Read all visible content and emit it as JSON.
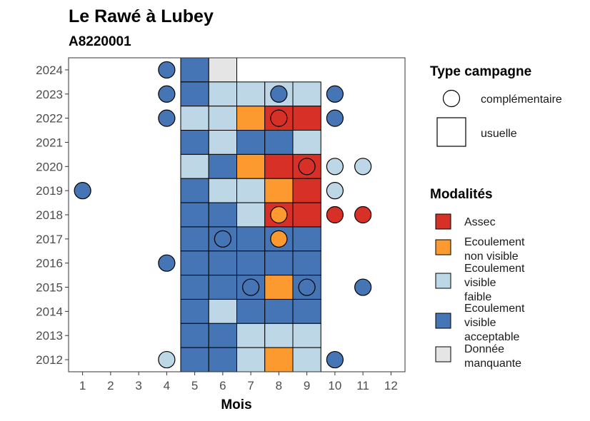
{
  "chart_data": {
    "type": "heatmap",
    "title": "Le Rawé à Lubey",
    "subtitle": "A8220001",
    "xlabel": "Mois",
    "ylabel": "",
    "x_ticks": [
      "1",
      "2",
      "3",
      "4",
      "5",
      "6",
      "7",
      "8",
      "9",
      "10",
      "11",
      "12"
    ],
    "y_ticks": [
      "2012",
      "2013",
      "2014",
      "2015",
      "2016",
      "2017",
      "2018",
      "2019",
      "2020",
      "2021",
      "2022",
      "2023",
      "2024"
    ],
    "xlim": [
      0.5,
      12.5
    ],
    "ylim": [
      2011.5,
      2024.5
    ],
    "grid": false,
    "legend_position": "right",
    "legend_type": {
      "title": "Type campagne",
      "items": [
        {
          "key": "complementaire",
          "label": "complémentaire",
          "shape": "circle"
        },
        {
          "key": "usuelle",
          "label": "usuelle",
          "shape": "square"
        }
      ]
    },
    "legend_modalites": {
      "title": "Modalités",
      "items": [
        {
          "key": "assec",
          "lines": [
            "Assec"
          ],
          "color": "#d73027"
        },
        {
          "key": "enb",
          "lines": [
            "Ecoulement",
            "non visible"
          ],
          "color": "#fd9a2f"
        },
        {
          "key": "evf",
          "lines": [
            "Ecoulement",
            "visible",
            "faible"
          ],
          "color": "#bdd7e7"
        },
        {
          "key": "eva",
          "lines": [
            "Ecoulement",
            "visible",
            "acceptable"
          ],
          "color": "#4575b4"
        },
        {
          "key": "nd",
          "lines": [
            "Donnée",
            "manquante"
          ],
          "color": "#e5e5e5"
        }
      ]
    },
    "tiles": [
      {
        "year": 2024,
        "month": 5,
        "m": "eva"
      },
      {
        "year": 2024,
        "month": 6,
        "m": "nd"
      },
      {
        "year": 2023,
        "month": 5,
        "m": "eva"
      },
      {
        "year": 2023,
        "month": 6,
        "m": "evf"
      },
      {
        "year": 2023,
        "month": 7,
        "m": "evf"
      },
      {
        "year": 2023,
        "month": 8,
        "m": "evf"
      },
      {
        "year": 2023,
        "month": 9,
        "m": "evf"
      },
      {
        "year": 2022,
        "month": 5,
        "m": "evf"
      },
      {
        "year": 2022,
        "month": 6,
        "m": "evf"
      },
      {
        "year": 2022,
        "month": 7,
        "m": "enb"
      },
      {
        "year": 2022,
        "month": 8,
        "m": "assec"
      },
      {
        "year": 2022,
        "month": 9,
        "m": "assec"
      },
      {
        "year": 2021,
        "month": 5,
        "m": "eva"
      },
      {
        "year": 2021,
        "month": 6,
        "m": "evf"
      },
      {
        "year": 2021,
        "month": 7,
        "m": "eva"
      },
      {
        "year": 2021,
        "month": 8,
        "m": "eva"
      },
      {
        "year": 2021,
        "month": 9,
        "m": "evf"
      },
      {
        "year": 2020,
        "month": 5,
        "m": "evf"
      },
      {
        "year": 2020,
        "month": 6,
        "m": "eva"
      },
      {
        "year": 2020,
        "month": 7,
        "m": "enb"
      },
      {
        "year": 2020,
        "month": 8,
        "m": "assec"
      },
      {
        "year": 2020,
        "month": 9,
        "m": "assec"
      },
      {
        "year": 2019,
        "month": 5,
        "m": "eva"
      },
      {
        "year": 2019,
        "month": 6,
        "m": "evf"
      },
      {
        "year": 2019,
        "month": 7,
        "m": "evf"
      },
      {
        "year": 2019,
        "month": 8,
        "m": "enb"
      },
      {
        "year": 2019,
        "month": 9,
        "m": "assec"
      },
      {
        "year": 2018,
        "month": 5,
        "m": "eva"
      },
      {
        "year": 2018,
        "month": 6,
        "m": "eva"
      },
      {
        "year": 2018,
        "month": 7,
        "m": "evf"
      },
      {
        "year": 2018,
        "month": 8,
        "m": "assec"
      },
      {
        "year": 2018,
        "month": 9,
        "m": "assec"
      },
      {
        "year": 2017,
        "month": 5,
        "m": "eva"
      },
      {
        "year": 2017,
        "month": 6,
        "m": "eva"
      },
      {
        "year": 2017,
        "month": 7,
        "m": "eva"
      },
      {
        "year": 2017,
        "month": 8,
        "m": "eva"
      },
      {
        "year": 2017,
        "month": 9,
        "m": "eva"
      },
      {
        "year": 2016,
        "month": 5,
        "m": "eva"
      },
      {
        "year": 2016,
        "month": 6,
        "m": "eva"
      },
      {
        "year": 2016,
        "month": 7,
        "m": "eva"
      },
      {
        "year": 2016,
        "month": 8,
        "m": "eva"
      },
      {
        "year": 2016,
        "month": 9,
        "m": "eva"
      },
      {
        "year": 2015,
        "month": 5,
        "m": "eva"
      },
      {
        "year": 2015,
        "month": 6,
        "m": "eva"
      },
      {
        "year": 2015,
        "month": 7,
        "m": "eva"
      },
      {
        "year": 2015,
        "month": 8,
        "m": "enb"
      },
      {
        "year": 2015,
        "month": 9,
        "m": "eva"
      },
      {
        "year": 2014,
        "month": 5,
        "m": "eva"
      },
      {
        "year": 2014,
        "month": 6,
        "m": "evf"
      },
      {
        "year": 2014,
        "month": 7,
        "m": "eva"
      },
      {
        "year": 2014,
        "month": 8,
        "m": "eva"
      },
      {
        "year": 2014,
        "month": 9,
        "m": "eva"
      },
      {
        "year": 2013,
        "month": 5,
        "m": "eva"
      },
      {
        "year": 2013,
        "month": 6,
        "m": "eva"
      },
      {
        "year": 2013,
        "month": 7,
        "m": "evf"
      },
      {
        "year": 2013,
        "month": 8,
        "m": "evf"
      },
      {
        "year": 2013,
        "month": 9,
        "m": "evf"
      },
      {
        "year": 2012,
        "month": 5,
        "m": "eva"
      },
      {
        "year": 2012,
        "month": 6,
        "m": "eva"
      },
      {
        "year": 2012,
        "month": 7,
        "m": "evf"
      },
      {
        "year": 2012,
        "month": 8,
        "m": "enb"
      },
      {
        "year": 2012,
        "month": 9,
        "m": "evf"
      }
    ],
    "points": [
      {
        "year": 2024,
        "month": 4,
        "m": "eva"
      },
      {
        "year": 2023,
        "month": 4,
        "m": "eva"
      },
      {
        "year": 2023,
        "month": 8,
        "m": "eva"
      },
      {
        "year": 2023,
        "month": 10,
        "m": "eva"
      },
      {
        "year": 2022,
        "month": 4,
        "m": "eva"
      },
      {
        "year": 2022,
        "month": 8,
        "m": "assec"
      },
      {
        "year": 2022,
        "month": 10,
        "m": "eva"
      },
      {
        "year": 2020,
        "month": 9,
        "m": "assec"
      },
      {
        "year": 2020,
        "month": 10,
        "m": "evf"
      },
      {
        "year": 2020,
        "month": 11,
        "m": "evf"
      },
      {
        "year": 2019,
        "month": 1,
        "m": "eva"
      },
      {
        "year": 2019,
        "month": 10,
        "m": "evf"
      },
      {
        "year": 2018,
        "month": 8,
        "m": "enb"
      },
      {
        "year": 2018,
        "month": 10,
        "m": "assec"
      },
      {
        "year": 2018,
        "month": 11,
        "m": "assec"
      },
      {
        "year": 2017,
        "month": 6,
        "m": "eva"
      },
      {
        "year": 2017,
        "month": 8,
        "m": "enb"
      },
      {
        "year": 2016,
        "month": 4,
        "m": "eva"
      },
      {
        "year": 2015,
        "month": 7,
        "m": "eva"
      },
      {
        "year": 2015,
        "month": 9,
        "m": "eva"
      },
      {
        "year": 2015,
        "month": 11,
        "m": "eva"
      },
      {
        "year": 2012,
        "month": 4,
        "m": "evf"
      },
      {
        "year": 2012,
        "month": 10,
        "m": "eva"
      }
    ]
  }
}
